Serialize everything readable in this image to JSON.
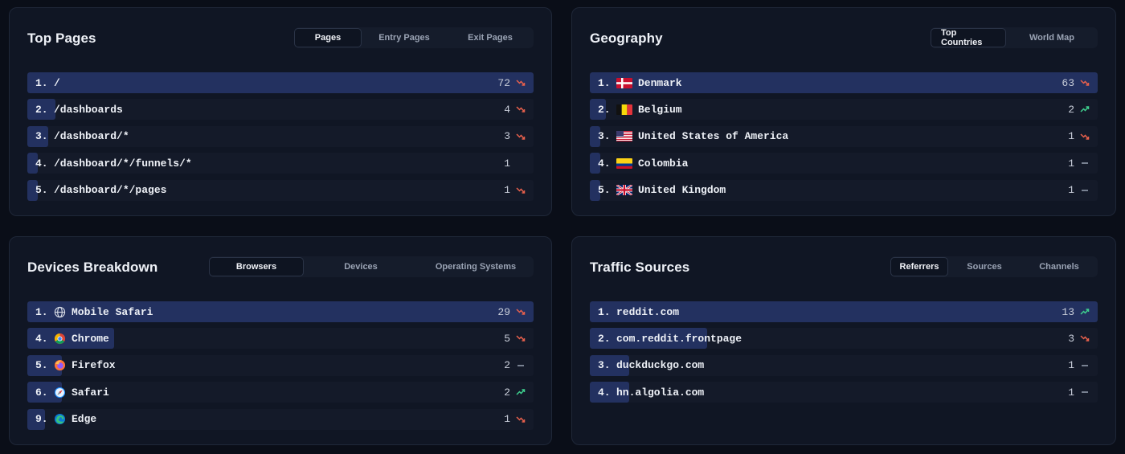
{
  "top_pages": {
    "title": "Top Pages",
    "tabs": [
      "Pages",
      "Entry Pages",
      "Exit Pages"
    ],
    "active_tab": 0,
    "rows": [
      {
        "rank": "1.",
        "label": "/",
        "count": "72",
        "trend": "down",
        "fraction": 1.0
      },
      {
        "rank": "2.",
        "label": "/dashboards",
        "count": "4",
        "trend": "down",
        "fraction": 0.055
      },
      {
        "rank": "3.",
        "label": "/dashboard/*",
        "count": "3",
        "trend": "down",
        "fraction": 0.042
      },
      {
        "rank": "4.",
        "label": "/dashboard/*/funnels/*",
        "count": "1",
        "trend": "none",
        "fraction": 0.02
      },
      {
        "rank": "5.",
        "label": "/dashboard/*/pages",
        "count": "1",
        "trend": "down",
        "fraction": 0.02
      }
    ]
  },
  "geography": {
    "title": "Geography",
    "tabs": [
      "Top Countries",
      "World Map"
    ],
    "active_tab": 0,
    "rows": [
      {
        "rank": "1.",
        "flag": "dk",
        "label": "Denmark",
        "count": "63",
        "trend": "down",
        "fraction": 1.0
      },
      {
        "rank": "2.",
        "flag": "be",
        "label": "Belgium",
        "count": "2",
        "trend": "up",
        "fraction": 0.032
      },
      {
        "rank": "3.",
        "flag": "us",
        "label": "United States of America",
        "count": "1",
        "trend": "down",
        "fraction": 0.02
      },
      {
        "rank": "4.",
        "flag": "co",
        "label": "Colombia",
        "count": "1",
        "trend": "flat",
        "fraction": 0.02
      },
      {
        "rank": "5.",
        "flag": "gb",
        "label": "United Kingdom",
        "count": "1",
        "trend": "flat",
        "fraction": 0.02
      }
    ]
  },
  "devices": {
    "title": "Devices Breakdown",
    "tabs": [
      "Browsers",
      "Devices",
      "Operating Systems"
    ],
    "active_tab": 0,
    "rows": [
      {
        "rank": "1.",
        "icon": "globe-icon",
        "label": "Mobile Safari",
        "count": "29",
        "trend": "down",
        "fraction": 1.0
      },
      {
        "rank": "4.",
        "icon": "chrome-icon",
        "label": "Chrome",
        "count": "5",
        "trend": "down",
        "fraction": 0.172
      },
      {
        "rank": "5.",
        "icon": "firefox-icon",
        "label": "Firefox",
        "count": "2",
        "trend": "flat",
        "fraction": 0.069
      },
      {
        "rank": "6.",
        "icon": "safari-icon",
        "label": "Safari",
        "count": "2",
        "trend": "up",
        "fraction": 0.069
      },
      {
        "rank": "9.",
        "icon": "edge-icon",
        "label": "Edge",
        "count": "1",
        "trend": "down",
        "fraction": 0.035
      }
    ]
  },
  "traffic": {
    "title": "Traffic Sources",
    "tabs": [
      "Referrers",
      "Sources",
      "Channels"
    ],
    "active_tab": 0,
    "rows": [
      {
        "rank": "1.",
        "label": "reddit.com",
        "count": "13",
        "trend": "up",
        "fraction": 1.0
      },
      {
        "rank": "2.",
        "label": "com.reddit.frontpage",
        "count": "3",
        "trend": "down",
        "fraction": 0.231
      },
      {
        "rank": "3.",
        "label": "duckduckgo.com",
        "count": "1",
        "trend": "flat",
        "fraction": 0.077
      },
      {
        "rank": "4.",
        "label": "hn.algolia.com",
        "count": "1",
        "trend": "flat",
        "fraction": 0.077
      }
    ]
  },
  "colors": {
    "trend_down": "#e8604c",
    "trend_up": "#3ecf8e",
    "trend_flat": "#9aa3b4",
    "bar": "#233160"
  }
}
